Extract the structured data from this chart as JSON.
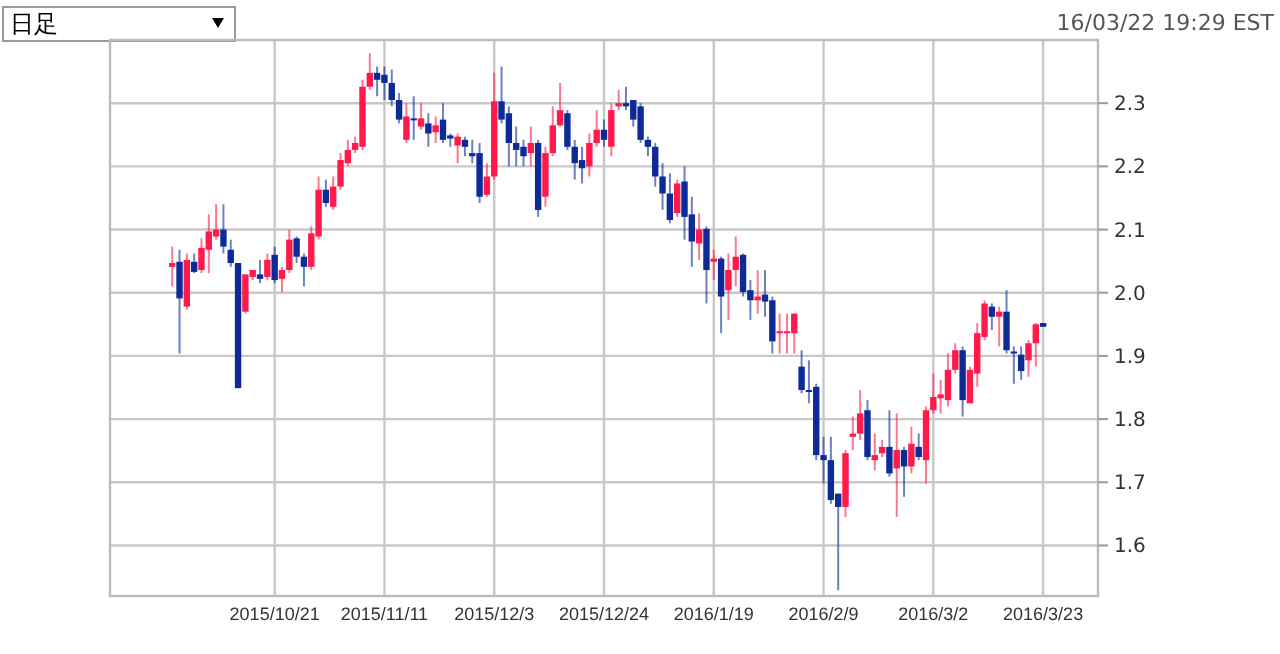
{
  "chart_data": {
    "type": "candlestick",
    "annotations": [
      "日足",
      "16/03/22 19:29 EST"
    ],
    "categories": [
      null,
      null,
      null,
      null,
      null,
      null,
      null,
      null,
      null,
      null,
      null,
      null,
      null,
      null,
      null,
      null,
      null,
      null,
      null,
      null,
      null,
      null,
      "2015/10/21",
      null,
      null,
      null,
      null,
      null,
      null,
      null,
      null,
      null,
      null,
      null,
      null,
      null,
      null,
      "2015/11/11",
      null,
      null,
      null,
      null,
      null,
      null,
      null,
      null,
      null,
      null,
      null,
      null,
      null,
      null,
      "2015/12/3",
      null,
      null,
      null,
      null,
      null,
      null,
      null,
      null,
      null,
      null,
      null,
      null,
      null,
      null,
      "2015/12/24",
      null,
      null,
      null,
      null,
      null,
      null,
      null,
      null,
      null,
      null,
      null,
      null,
      null,
      null,
      "2016/1/19",
      null,
      null,
      null,
      null,
      null,
      null,
      null,
      null,
      null,
      null,
      null,
      null,
      null,
      null,
      "2016/2/9",
      null,
      null,
      null,
      null,
      null,
      null,
      null,
      null,
      null,
      null,
      null,
      null,
      null,
      null,
      "2016/3/2",
      null,
      null,
      null,
      null,
      null,
      null,
      null,
      null,
      null,
      null,
      null,
      null,
      null,
      null,
      "2016/3/23",
      null,
      null,
      null,
      null,
      null,
      null,
      null
    ],
    "ohlc": [
      null,
      null,
      null,
      null,
      null,
      null,
      null,
      null,
      [
        2.041,
        2.073,
        2.01,
        2.047
      ],
      [
        2.049,
        2.068,
        1.904,
        1.991
      ],
      [
        1.978,
        2.062,
        1.973,
        2.052
      ],
      [
        2.049,
        2.062,
        2.031,
        2.033
      ],
      [
        2.036,
        2.086,
        2.031,
        2.071
      ],
      [
        2.068,
        2.124,
        2.031,
        2.097
      ],
      [
        2.089,
        2.14,
        2.084,
        2.1
      ],
      [
        2.1,
        2.14,
        2.062,
        2.073
      ],
      [
        2.068,
        2.084,
        2.041,
        2.047
      ],
      [
        2.047,
        2.047,
        1.849,
        1.849
      ],
      [
        1.97,
        2.029,
        1.967,
        2.029
      ],
      [
        2.025,
        2.036,
        2.02,
        2.036
      ],
      [
        2.029,
        2.052,
        2.015,
        2.022
      ],
      [
        2.025,
        2.062,
        2.02,
        2.052
      ],
      [
        2.06,
        2.073,
        2.015,
        2.02
      ],
      [
        2.022,
        2.041,
        2.001,
        2.036
      ],
      [
        2.036,
        2.1,
        2.031,
        2.084
      ],
      [
        2.086,
        2.089,
        2.047,
        2.057
      ],
      [
        2.057,
        2.062,
        2.01,
        2.041
      ],
      [
        2.041,
        2.105,
        2.036,
        2.094
      ],
      [
        2.089,
        2.184,
        2.084,
        2.163
      ],
      [
        2.163,
        2.179,
        2.136,
        2.142
      ],
      [
        2.136,
        2.184,
        2.131,
        2.168
      ],
      [
        2.168,
        2.221,
        2.163,
        2.21
      ],
      [
        2.205,
        2.242,
        2.2,
        2.226
      ],
      [
        2.226,
        2.247,
        2.221,
        2.237
      ],
      [
        2.231,
        2.337,
        2.226,
        2.326
      ],
      [
        2.326,
        2.379,
        2.321,
        2.348
      ],
      [
        2.348,
        2.358,
        2.311,
        2.337
      ],
      [
        2.345,
        2.358,
        2.305,
        2.332
      ],
      [
        2.332,
        2.353,
        2.295,
        2.305
      ],
      [
        2.305,
        2.316,
        2.268,
        2.274
      ],
      [
        2.242,
        2.3,
        2.237,
        2.279
      ],
      [
        2.276,
        2.311,
        2.242,
        2.273
      ],
      [
        2.263,
        2.3,
        2.258,
        2.276
      ],
      [
        2.268,
        2.284,
        2.231,
        2.252
      ],
      [
        2.254,
        2.279,
        2.237,
        2.265
      ],
      [
        2.274,
        2.3,
        2.237,
        2.242
      ],
      [
        2.249,
        2.252,
        2.231,
        2.244
      ],
      [
        2.233,
        2.252,
        2.205,
        2.247
      ],
      [
        2.242,
        2.247,
        2.216,
        2.231
      ],
      [
        2.221,
        2.242,
        2.205,
        2.216
      ],
      [
        2.221,
        2.237,
        2.142,
        2.152
      ],
      [
        2.155,
        2.205,
        2.152,
        2.184
      ],
      [
        2.184,
        2.348,
        2.179,
        2.303
      ],
      [
        2.303,
        2.358,
        2.268,
        2.274
      ],
      [
        2.284,
        2.295,
        2.2,
        2.237
      ],
      [
        2.237,
        2.263,
        2.2,
        2.226
      ],
      [
        2.231,
        2.242,
        2.2,
        2.216
      ],
      [
        2.221,
        2.263,
        2.2,
        2.237
      ],
      [
        2.237,
        2.242,
        2.12,
        2.131
      ],
      [
        2.152,
        2.231,
        2.136,
        2.221
      ],
      [
        2.221,
        2.295,
        2.216,
        2.265
      ],
      [
        2.265,
        2.332,
        2.263,
        2.289
      ],
      [
        2.284,
        2.289,
        2.226,
        2.231
      ],
      [
        2.231,
        2.242,
        2.179,
        2.205
      ],
      [
        2.21,
        2.231,
        2.173,
        2.197
      ],
      [
        2.2,
        2.252,
        2.184,
        2.237
      ],
      [
        2.237,
        2.289,
        2.231,
        2.258
      ],
      [
        2.258,
        2.274,
        2.231,
        2.242
      ],
      [
        2.231,
        2.3,
        2.216,
        2.289
      ],
      [
        2.295,
        2.321,
        2.289,
        2.3
      ],
      [
        2.3,
        2.326,
        2.289,
        2.295
      ],
      [
        2.305,
        2.305,
        2.263,
        2.274
      ],
      [
        2.295,
        2.3,
        2.237,
        2.242
      ],
      [
        2.242,
        2.247,
        2.216,
        2.231
      ],
      [
        2.231,
        2.237,
        2.168,
        2.184
      ],
      [
        2.184,
        2.205,
        2.131,
        2.157
      ],
      [
        2.157,
        2.189,
        2.11,
        2.115
      ],
      [
        2.126,
        2.179,
        2.12,
        2.173
      ],
      [
        2.176,
        2.2,
        2.084,
        2.12
      ],
      [
        2.124,
        2.152,
        2.041,
        2.081
      ],
      [
        2.078,
        2.126,
        2.052,
        2.1
      ],
      [
        2.101,
        2.105,
        1.983,
        2.036
      ],
      [
        2.049,
        2.068,
        2.02,
        2.054
      ],
      [
        2.054,
        2.057,
        1.936,
        1.994
      ],
      [
        2.004,
        2.062,
        1.957,
        2.036
      ],
      [
        2.036,
        2.089,
        2.01,
        2.057
      ],
      [
        2.06,
        2.062,
        1.994,
        2.001
      ],
      [
        2.004,
        2.02,
        1.957,
        1.988
      ],
      [
        1.988,
        2.036,
        1.967,
        1.994
      ],
      [
        1.997,
        2.036,
        1.962,
        1.986
      ],
      [
        1.988,
        1.994,
        1.904,
        1.923
      ],
      [
        1.936,
        1.967,
        1.904,
        1.939
      ],
      [
        1.936,
        1.967,
        1.904,
        1.939
      ],
      [
        1.936,
        1.967,
        1.904,
        1.967
      ],
      [
        1.883,
        1.909,
        1.841,
        1.846
      ],
      [
        1.846,
        1.893,
        1.825,
        1.843
      ],
      [
        1.851,
        1.856,
        1.735,
        1.743
      ],
      [
        1.743,
        1.772,
        1.698,
        1.735
      ],
      [
        1.735,
        1.772,
        1.666,
        1.672
      ],
      [
        1.682,
        1.682,
        1.529,
        1.661
      ],
      [
        1.661,
        1.751,
        1.645,
        1.746
      ],
      [
        1.772,
        1.804,
        1.751,
        1.777
      ],
      [
        1.777,
        1.846,
        1.767,
        1.809
      ],
      [
        1.814,
        1.83,
        1.735,
        1.74
      ],
      [
        1.735,
        1.777,
        1.719,
        1.743
      ],
      [
        1.746,
        1.767,
        1.74,
        1.756
      ],
      [
        1.756,
        1.814,
        1.709,
        1.714
      ],
      [
        1.722,
        1.809,
        1.645,
        1.751
      ],
      [
        1.751,
        1.756,
        1.677,
        1.725
      ],
      [
        1.725,
        1.788,
        1.714,
        1.761
      ],
      [
        1.756,
        1.777,
        1.735,
        1.74
      ],
      [
        1.735,
        1.82,
        1.698,
        1.814
      ],
      [
        1.814,
        1.872,
        1.809,
        1.835
      ],
      [
        1.833,
        1.862,
        1.809,
        1.839
      ],
      [
        1.83,
        1.904,
        1.82,
        1.878
      ],
      [
        1.878,
        1.92,
        1.872,
        1.909
      ],
      [
        1.909,
        1.915,
        1.804,
        1.83
      ],
      [
        1.825,
        1.883,
        1.825,
        1.878
      ],
      [
        1.872,
        1.952,
        1.851,
        1.936
      ],
      [
        1.93,
        1.988,
        1.925,
        1.983
      ],
      [
        1.978,
        1.983,
        1.941,
        1.962
      ],
      [
        1.962,
        1.978,
        1.915,
        1.97
      ],
      [
        1.97,
        2.004,
        1.904,
        1.909
      ],
      [
        1.907,
        1.915,
        1.856,
        1.904
      ],
      [
        1.902,
        1.915,
        1.862,
        1.876
      ],
      [
        1.893,
        1.925,
        1.867,
        1.92
      ],
      [
        1.92,
        1.952,
        1.883,
        1.95
      ],
      [
        1.952,
        1.952,
        1.946,
        1.946
      ],
      null,
      null,
      null,
      null,
      null,
      null,
      null
    ],
    "colors": [
      null,
      null,
      null,
      null,
      null,
      null,
      null,
      null,
      "#ff1a4b",
      "#0d2b96",
      "#ff1a4b",
      "#0d2b96",
      "#ff1a4b",
      "#ff1a4b",
      "#ff1a4b",
      "#0d2b96",
      "#0d2b96",
      "#0d2b96",
      "#ff1a4b",
      "#ff1a4b",
      "#0d2b96",
      "#ff1a4b",
      "#0d2b96",
      "#ff1a4b",
      "#ff1a4b",
      "#0d2b96",
      "#0d2b96",
      "#ff1a4b",
      "#ff1a4b",
      "#0d2b96",
      "#ff1a4b",
      "#ff1a4b",
      "#ff1a4b",
      "#ff1a4b",
      "#ff1a4b",
      "#ff1a4b",
      "#0d2b96",
      "#0d2b96",
      "#0d2b96",
      "#0d2b96",
      "#ff1a4b",
      "#0d2b96",
      "#ff1a4b",
      "#0d2b96",
      "#ff1a4b",
      "#0d2b96",
      "#0d2b96",
      "#ff1a4b",
      "#0d2b96",
      "#0d2b96",
      "#0d2b96",
      "#ff1a4b",
      "#ff1a4b",
      "#0d2b96",
      "#0d2b96",
      "#0d2b96",
      "#0d2b96",
      "#ff1a4b",
      "#0d2b96",
      "#ff1a4b",
      "#ff1a4b",
      "#ff1a4b",
      "#0d2b96",
      "#0d2b96",
      "#0d2b96",
      "#ff1a4b",
      "#ff1a4b",
      "#0d2b96",
      "#ff1a4b",
      "#ff1a4b",
      "#0d2b96",
      "#0d2b96",
      "#0d2b96",
      "#0d2b96",
      "#0d2b96",
      "#0d2b96",
      "#0d2b96",
      "#ff1a4b",
      "#0d2b96",
      "#0d2b96",
      "#ff1a4b",
      "#0d2b96",
      "#ff1a4b",
      "#0d2b96",
      "#ff1a4b",
      "#ff1a4b",
      "#0d2b96",
      "#0d2b96",
      "#ff1a4b",
      "#0d2b96",
      "#0d2b96",
      "#ff1a4b",
      "#ff1a4b",
      "#ff1a4b",
      "#0d2b96",
      "#0d2b96",
      "#0d2b96",
      "#0d2b96",
      "#0d2b96",
      "#0d2b96",
      "#ff1a4b",
      "#ff1a4b",
      "#ff1a4b",
      "#0d2b96",
      "#ff1a4b",
      "#ff1a4b",
      "#0d2b96",
      "#ff1a4b",
      "#0d2b96",
      "#ff1a4b",
      "#0d2b96",
      "#ff1a4b",
      "#ff1a4b",
      "#ff1a4b",
      "#ff1a4b",
      "#ff1a4b",
      "#0d2b96",
      "#ff1a4b",
      "#ff1a4b",
      "#ff1a4b",
      "#0d2b96",
      "#ff1a4b",
      "#0d2b96",
      "#0d2b96",
      "#0d2b96",
      "#ff1a4b",
      "#ff1a4b",
      "#0d2b96",
      null,
      null,
      null,
      null,
      null,
      null,
      null
    ],
    "ylim": [
      1.52,
      2.4
    ],
    "yticks": [
      1.6,
      1.7,
      1.8,
      1.9,
      {
        "value": 2,
        "label": "2.0"
      },
      2.1,
      2.2,
      2.3
    ],
    "grid": true
  }
}
